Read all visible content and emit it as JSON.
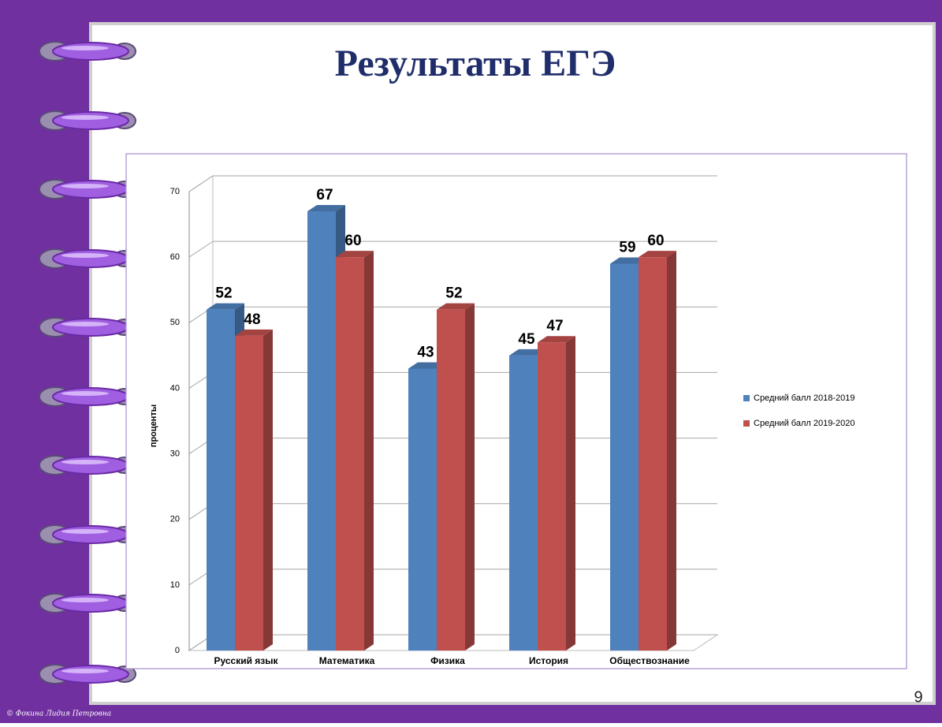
{
  "slide": {
    "page_number": "9",
    "credit": "© Фокина Лидия Петровна"
  },
  "chart_data": {
    "type": "bar3d",
    "title": "Результаты ЕГЭ",
    "y_label": "проценты",
    "categories": [
      "Русский язык",
      "Математика",
      "Физика",
      "История",
      "Обществознание"
    ],
    "series": [
      {
        "name": "Средний балл 2018-2019",
        "color": "#4f81bd",
        "values": [
          52,
          67,
          43,
          45,
          59
        ]
      },
      {
        "name": "Средний балл 2019-2020",
        "color": "#c0504d",
        "values": [
          48,
          60,
          52,
          47,
          60
        ]
      }
    ],
    "ylim": [
      0,
      70
    ],
    "yticks": [
      0,
      10,
      20,
      30,
      40,
      50,
      60,
      70
    ],
    "grid": true,
    "legend": "right"
  }
}
